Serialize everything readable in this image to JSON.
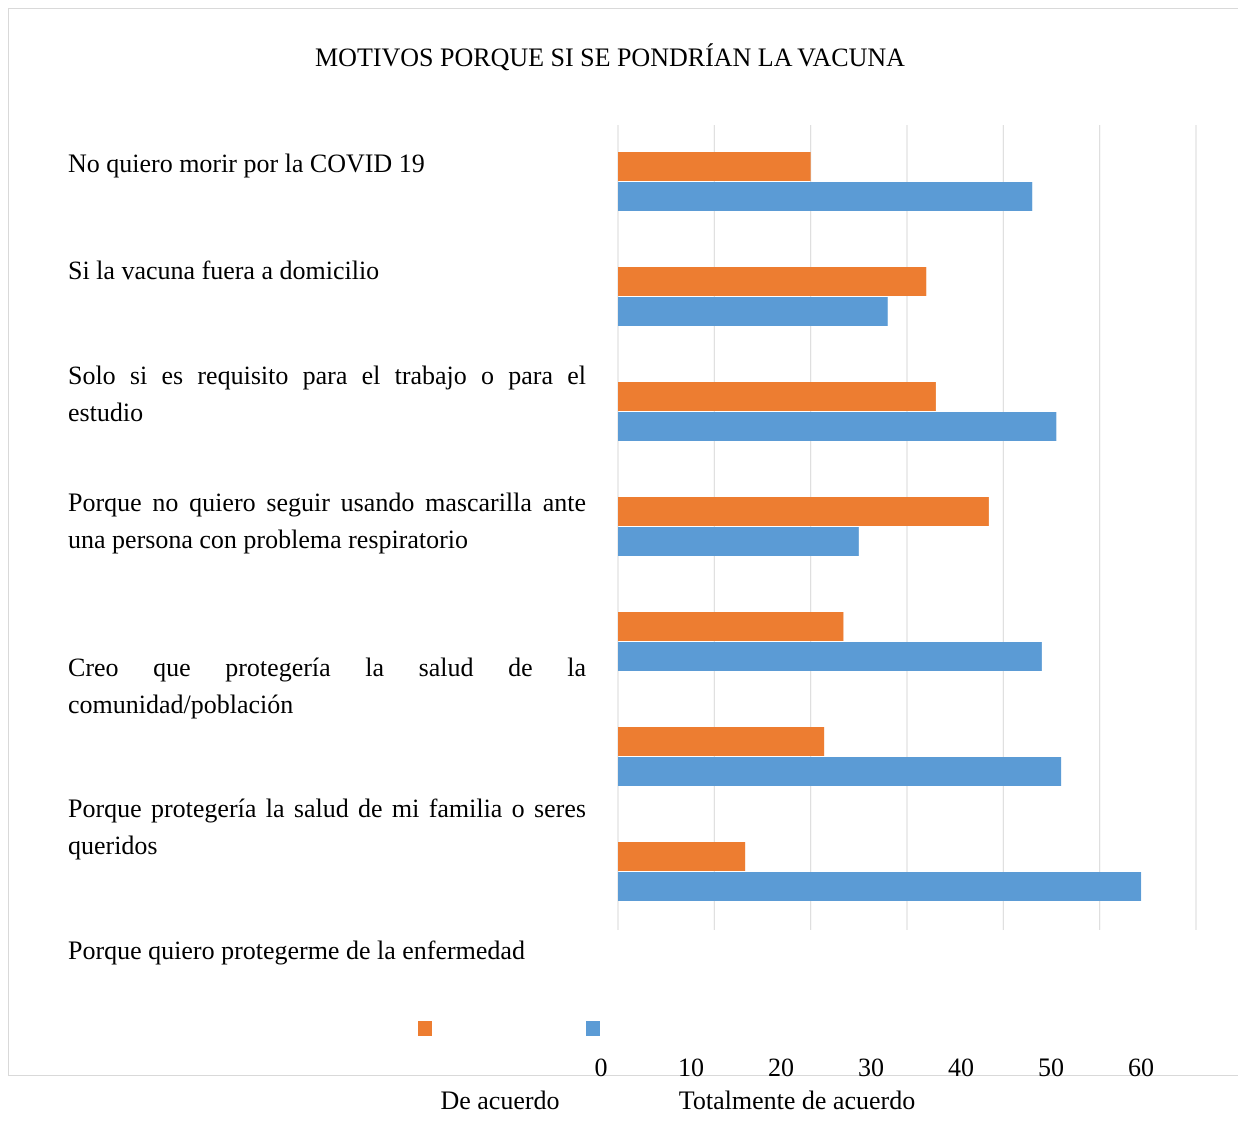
{
  "chart_data": {
    "type": "bar",
    "orientation": "horizontal",
    "title": "MOTIVOS PORQUE SI SE PONDRÍAN LA VACUNA",
    "categories": [
      "No quiero morir por la COVID 19",
      "Si la vacuna fuera a domicilio",
      "Solo si es requisito para el trabajo o para el estudio",
      "Porque no quiero seguir usando mascarilla ante una persona con problema respiratorio",
      "Creo que protegería la salud de la comunidad/población",
      "Porque protegería la salud de mi familia o seres queridos",
      "Porque quiero protegerme de la enfermedad"
    ],
    "series": [
      {
        "name": "De acuerdo",
        "color": "#ed7d31",
        "values": [
          20,
          32,
          33,
          38.5,
          23.4,
          21.4,
          13.2
        ]
      },
      {
        "name": "Totalmente de acuerdo",
        "color": "#5b9bd5",
        "values": [
          43,
          28,
          45.5,
          25,
          44,
          46,
          54.3
        ]
      }
    ],
    "xlim": [
      0,
      60
    ],
    "xticks": [
      0,
      10,
      20,
      30,
      40,
      50,
      60
    ],
    "grid": true
  }
}
